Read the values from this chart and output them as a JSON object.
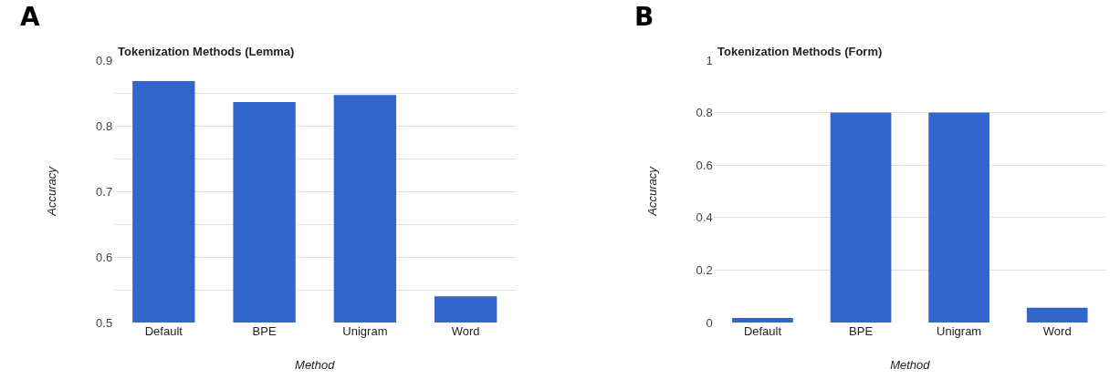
{
  "chart_data": [
    {
      "type": "bar",
      "title": "Tokenization Methods (Lemma)",
      "xlabel": "Method",
      "ylabel": "Accuracy",
      "annotations": [
        "A"
      ],
      "categories": [
        "Default",
        "BPE",
        "Unigram",
        "Word"
      ],
      "values": [
        0.868,
        0.836,
        0.847,
        0.54
      ],
      "color": "#3366cc",
      "ylim": [
        0.5,
        0.9
      ],
      "yticks": [
        0.5,
        {
          "value": 0.55,
          "label": null
        },
        0.6,
        {
          "value": 0.65,
          "label": null
        },
        0.7,
        {
          "value": 0.75,
          "label": null
        },
        0.8,
        {
          "value": 0.85,
          "label": null
        },
        0.9
      ],
      "grid": "y"
    },
    {
      "type": "bar",
      "title": "Tokenization Methods (Form)",
      "xlabel": "Method",
      "ylabel": "Accuracy",
      "annotations": [
        "B"
      ],
      "categories": [
        "Default",
        "BPE",
        "Unigram",
        "Word"
      ],
      "values": [
        0.017,
        0.8,
        0.8,
        0.056
      ],
      "color": "#3366cc",
      "ylim": [
        0,
        1
      ],
      "yticks": [
        0,
        0.2,
        0.4,
        0.6,
        0.8,
        1
      ],
      "grid": "y"
    }
  ]
}
